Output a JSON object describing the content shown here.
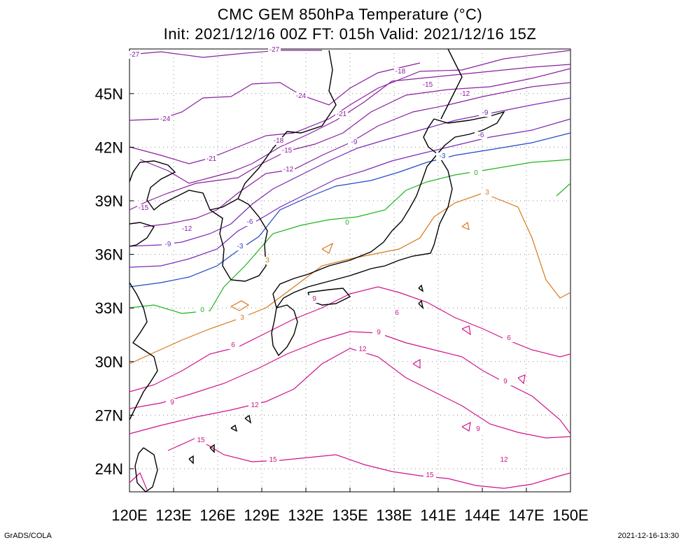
{
  "header": {
    "title": "CMC GEM 850hPa Temperature (°C)",
    "subtitle": "Init: 2021/12/16 00Z  FT: 015h  Valid: 2021/12/16 15Z"
  },
  "axes": {
    "lon_labels": [
      "120E",
      "123E",
      "126E",
      "129E",
      "132E",
      "135E",
      "138E",
      "141E",
      "144E",
      "147E",
      "150E"
    ],
    "lat_labels": [
      "24N",
      "27N",
      "30N",
      "33N",
      "36N",
      "39N",
      "42N",
      "45N"
    ]
  },
  "colors": {
    "coastline": "#000000",
    "grid": "#888888",
    "cold_purple": "#8a1fa0",
    "cool_violet": "#7a2ab8",
    "blue": "#1f48c8",
    "green": "#1fb41f",
    "orange": "#d7781c",
    "magenta": "#d0148a"
  },
  "contour_labels": [
    {
      "text": "-27",
      "color": "#8a1fa0"
    },
    {
      "text": "-27",
      "color": "#8a1fa0"
    },
    {
      "text": "-24",
      "color": "#8a1fa0"
    },
    {
      "text": "-24",
      "color": "#8a1fa0"
    },
    {
      "text": "-21",
      "color": "#8a1fa0"
    },
    {
      "text": "-21",
      "color": "#8a1fa0"
    },
    {
      "text": "-18",
      "color": "#8a1fa0"
    },
    {
      "text": "-18",
      "color": "#8a1fa0"
    },
    {
      "text": "-15",
      "color": "#8a1fa0"
    },
    {
      "text": "-15",
      "color": "#8a1fa0"
    },
    {
      "text": "-15",
      "color": "#8a1fa0"
    },
    {
      "text": "-12",
      "color": "#8a1fa0"
    },
    {
      "text": "-12",
      "color": "#8a1fa0"
    },
    {
      "text": "-12",
      "color": "#8a1fa0"
    },
    {
      "text": "-9",
      "color": "#7a2ab8"
    },
    {
      "text": "-9",
      "color": "#7a2ab8"
    },
    {
      "text": "-9",
      "color": "#7a2ab8"
    },
    {
      "text": "-6",
      "color": "#7a2ab8"
    },
    {
      "text": "-6",
      "color": "#7a2ab8"
    },
    {
      "text": "-3",
      "color": "#1f48c8"
    },
    {
      "text": "-3",
      "color": "#1f48c8"
    },
    {
      "text": "0",
      "color": "#1fb41f"
    },
    {
      "text": "0",
      "color": "#1fb41f"
    },
    {
      "text": "0",
      "color": "#1fb41f"
    },
    {
      "text": "3",
      "color": "#d7781c"
    },
    {
      "text": "3",
      "color": "#d7781c"
    },
    {
      "text": "3",
      "color": "#d7781c"
    },
    {
      "text": "6",
      "color": "#d0148a"
    },
    {
      "text": "6",
      "color": "#d0148a"
    },
    {
      "text": "6",
      "color": "#d0148a"
    },
    {
      "text": "9",
      "color": "#d0148a"
    },
    {
      "text": "9",
      "color": "#d0148a"
    },
    {
      "text": "9",
      "color": "#d0148a"
    },
    {
      "text": "9",
      "color": "#d0148a"
    },
    {
      "text": "9",
      "color": "#d0148a"
    },
    {
      "text": "12",
      "color": "#d0148a"
    },
    {
      "text": "12",
      "color": "#d0148a"
    },
    {
      "text": "12",
      "color": "#d0148a"
    },
    {
      "text": "15",
      "color": "#d0148a"
    },
    {
      "text": "15",
      "color": "#d0148a"
    },
    {
      "text": "15",
      "color": "#d0148a"
    }
  ],
  "footer": {
    "left": "GrADS/COLA",
    "right": "2021-12-16-13:30"
  }
}
